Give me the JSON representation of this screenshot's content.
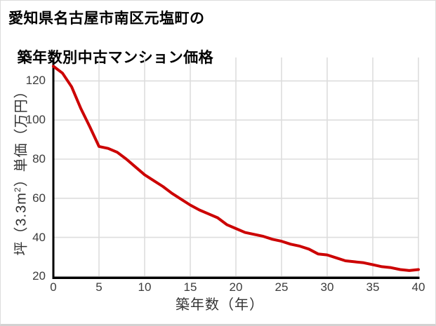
{
  "title": {
    "line1": "愛知県名古屋市南区元塩町の",
    "line2": "築年数別中古マンション価格"
  },
  "chart_data": {
    "type": "line",
    "title": "愛知県名古屋市南区元塩町の築年数別中古マンション価格",
    "xlabel": "築年数（年）",
    "ylabel": "坪（3.3m²）単価（万円）",
    "x": [
      0,
      1,
      2,
      3,
      4,
      5,
      6,
      7,
      8,
      9,
      10,
      11,
      12,
      13,
      14,
      15,
      16,
      17,
      18,
      19,
      20,
      21,
      22,
      23,
      24,
      25,
      26,
      27,
      28,
      29,
      30,
      31,
      32,
      33,
      34,
      35,
      36,
      37,
      38,
      39,
      40
    ],
    "values": [
      127.5,
      124,
      117,
      106,
      96.5,
      86.5,
      85.5,
      83.5,
      80,
      76,
      72,
      69,
      66,
      62.5,
      59.5,
      56.5,
      54,
      52,
      50,
      46.5,
      44.5,
      42.5,
      41.5,
      40.5,
      39,
      38,
      36.5,
      35.5,
      34,
      31.5,
      31,
      29.5,
      28,
      27.5,
      27,
      26,
      25,
      24.5,
      23.5,
      23,
      23.5
    ],
    "xlim": [
      0,
      40
    ],
    "ylim": [
      20,
      132
    ],
    "xticks": [
      0,
      5,
      10,
      15,
      20,
      25,
      30,
      35,
      40
    ],
    "yticks": [
      20,
      40,
      60,
      80,
      100,
      120
    ],
    "grid": true,
    "legend": "none",
    "line_color": "#cc0000",
    "grid_color": "#dddddd",
    "axis_color": "#000000",
    "tick_text_color": "#3c3c3c",
    "label_text_color": "#333333",
    "title_text_color": "#000000"
  }
}
